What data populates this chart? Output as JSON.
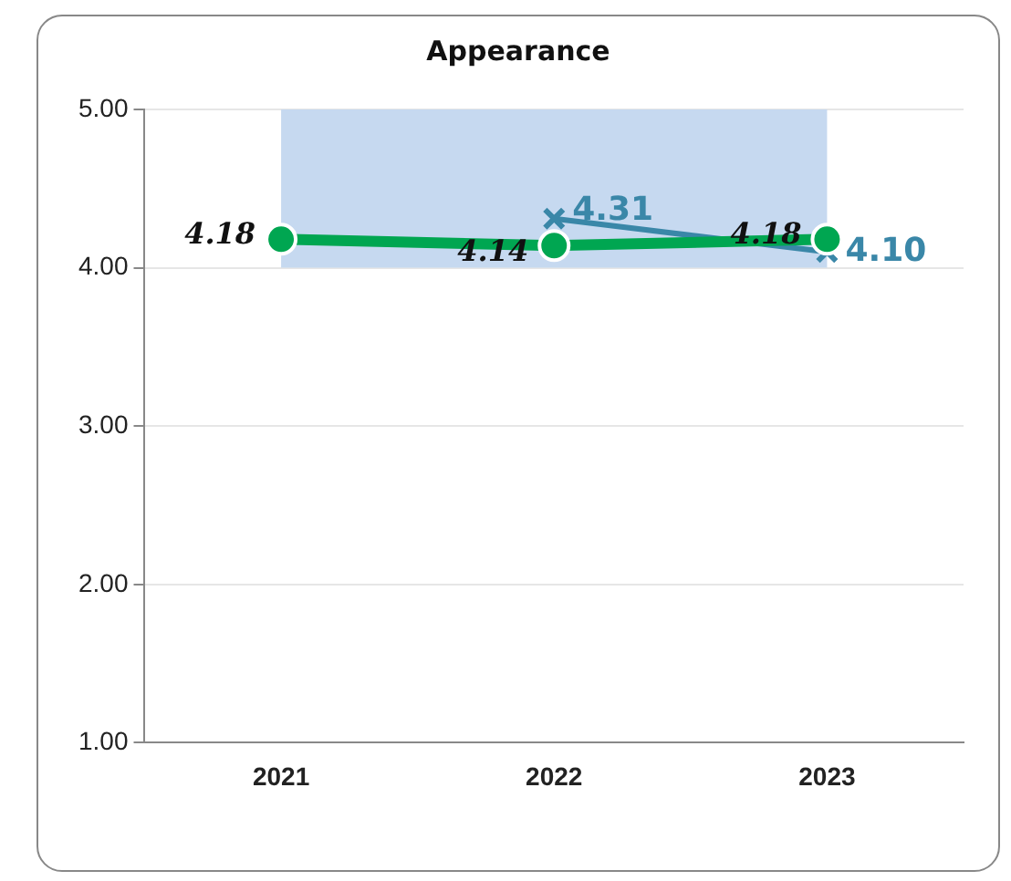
{
  "chart_data": {
    "type": "line",
    "title": "Appearance",
    "categories": [
      "2021",
      "2022",
      "2023"
    ],
    "series": [
      {
        "color": "#00a651",
        "values": [
          4.18,
          4.14,
          4.18
        ],
        "value_labels": [
          "4.18",
          "4.14",
          "4.18"
        ],
        "marker": "circle"
      },
      {
        "color": "#3a87a8",
        "values": [
          null,
          4.31,
          4.1
        ],
        "value_labels": [
          null,
          "4.31",
          "4.10"
        ],
        "marker": "cross"
      }
    ],
    "ylim": [
      1,
      5
    ],
    "yticks": [
      {
        "value": 1,
        "label": "1.00"
      },
      {
        "value": 2,
        "label": "2.00"
      },
      {
        "value": 3,
        "label": "3.00"
      },
      {
        "value": 4,
        "label": "4.00"
      },
      {
        "value": 5,
        "label": "5.00"
      }
    ],
    "bands": [
      {
        "axis": "y",
        "from": 4,
        "to": 5,
        "color": "#c6d9f0"
      }
    ],
    "grid": "y",
    "legend": false
  }
}
